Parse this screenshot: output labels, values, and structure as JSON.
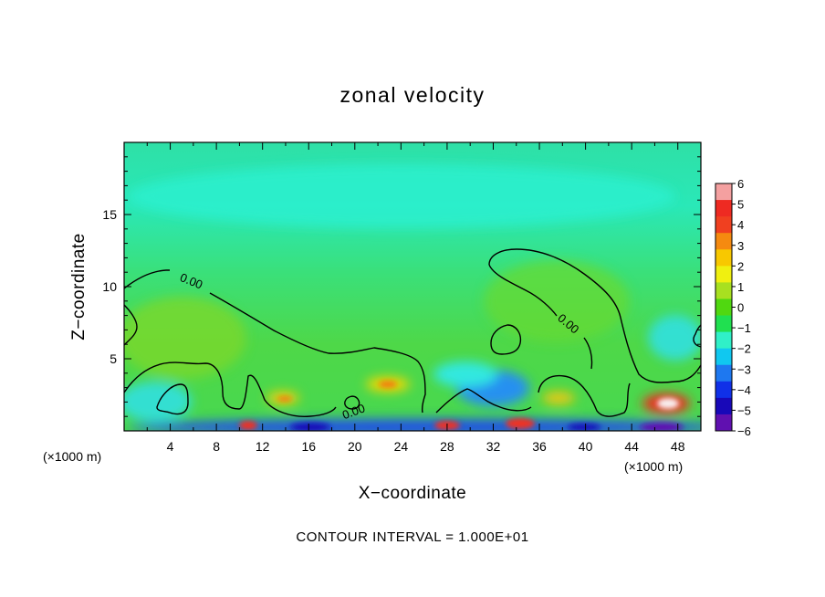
{
  "chart_data": {
    "type": "heatmap",
    "title": "zonal velocity",
    "xlabel": "X−coordinate",
    "ylabel": "Z−coordinate",
    "x_unit_left": "(×1000 m)",
    "x_unit_right": "(×1000 m)",
    "xlim": [
      0,
      50
    ],
    "ylim": [
      0,
      20
    ],
    "x_ticks": [
      "4",
      "8",
      "12",
      "16",
      "20",
      "24",
      "28",
      "32",
      "36",
      "40",
      "44",
      "48"
    ],
    "y_ticks": [
      "5",
      "10",
      "15"
    ],
    "colorbar": {
      "range": [
        -6,
        6
      ],
      "ticks": [
        "6",
        "5",
        "4",
        "3",
        "2",
        "1",
        "0",
        "−1",
        "−2",
        "−3",
        "−4",
        "−5",
        "−6"
      ],
      "colors": [
        "#f4a0a0",
        "#ee2a22",
        "#f04020",
        "#f58a10",
        "#f8c800",
        "#f0f010",
        "#a8e020",
        "#50d810",
        "#20e050",
        "#30f0c8",
        "#10c8f0",
        "#1e78f0",
        "#1030e8",
        "#1808b8",
        "#6010b0"
      ]
    },
    "contour_labels": [
      "0.00",
      "0.00",
      "0.00"
    ],
    "note": "CONTOUR INTERVAL = 1.000E+01"
  }
}
